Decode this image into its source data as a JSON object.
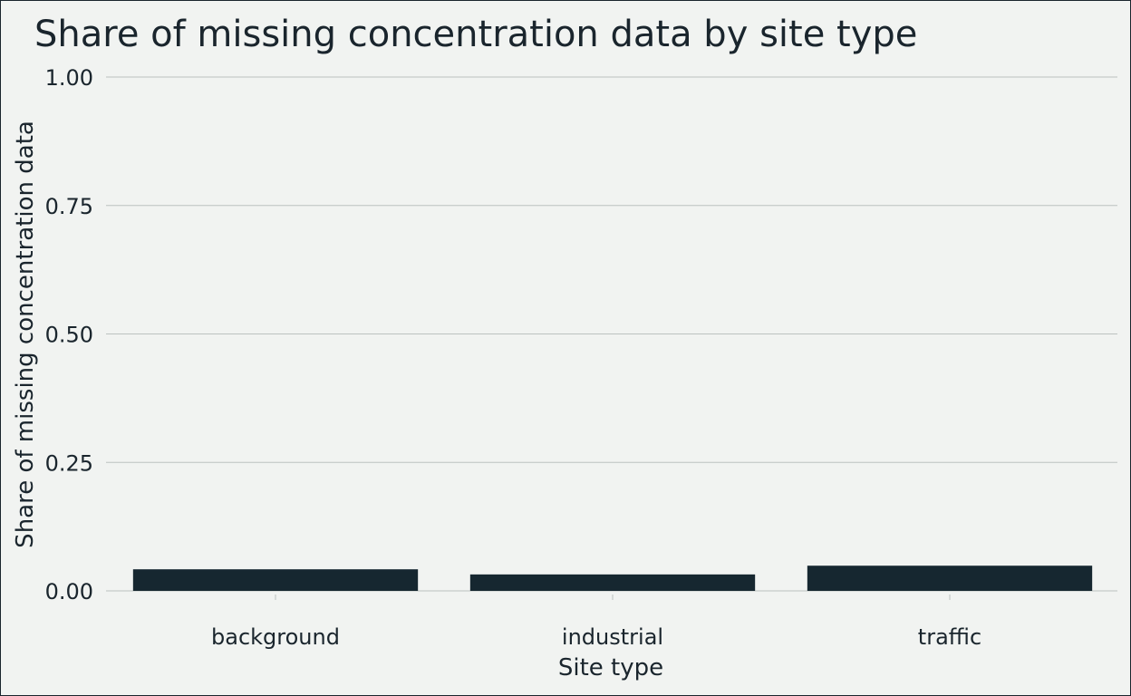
{
  "colors": {
    "background": "#f1f3f1",
    "bar": "#162730",
    "grid": "#bcc2c0",
    "text": "#1a252d"
  },
  "chart_data": {
    "type": "bar",
    "title": "Share of missing concentration data by site type",
    "xlabel": "Site type",
    "ylabel": "Share of missing concentration data",
    "categories": [
      "background",
      "industrial",
      "traffic"
    ],
    "values": [
      0.042,
      0.032,
      0.049
    ],
    "ylim": [
      0,
      1
    ],
    "yticks": [
      "0.00",
      "0.25",
      "0.50",
      "0.75",
      "1.00"
    ],
    "ytick_values": [
      0,
      0.25,
      0.5,
      0.75,
      1.0
    ],
    "grid": "horizontal-major",
    "legend": "none"
  }
}
